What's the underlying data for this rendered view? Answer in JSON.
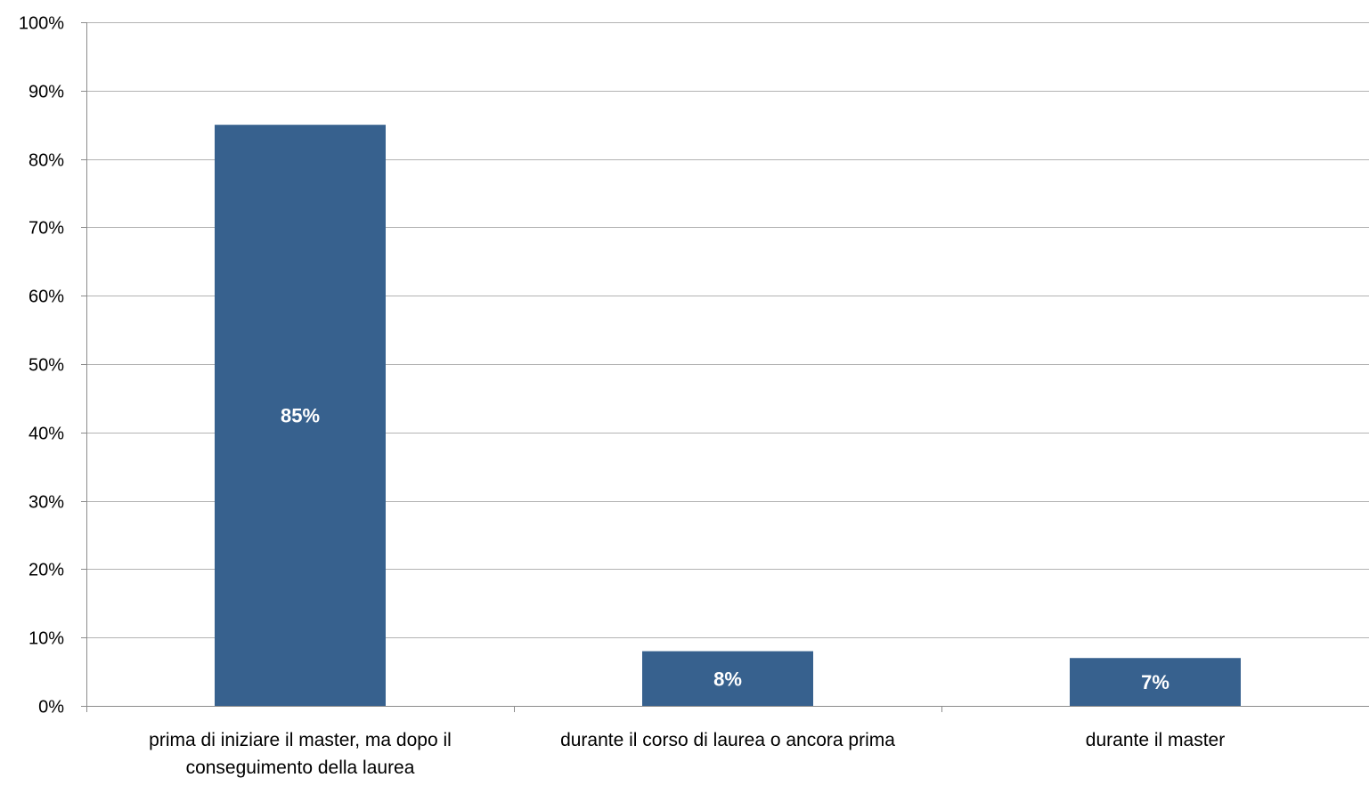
{
  "chart_data": {
    "type": "bar",
    "categories": [
      [
        "prima di iniziare il master, ma dopo il",
        "conseguimento della laurea"
      ],
      [
        "durante il corso di laurea o ancora prima"
      ],
      [
        "durante il master"
      ]
    ],
    "values": [
      85,
      8,
      7
    ],
    "data_labels": [
      "85%",
      "8%",
      "7%"
    ],
    "title": "",
    "xlabel": "",
    "ylabel": "",
    "ylim": [
      0,
      100
    ],
    "yticks": [
      0,
      10,
      20,
      30,
      40,
      50,
      60,
      70,
      80,
      90,
      100
    ],
    "ytick_labels": [
      "0%",
      "10%",
      "20%",
      "30%",
      "40%",
      "50%",
      "60%",
      "70%",
      "80%",
      "90%",
      "100%"
    ],
    "grid": true,
    "legend": "none",
    "colors": {
      "bar": "#37618E",
      "grid": "#B3B3B3",
      "axis": "#8C8C8C",
      "data_label": "#FFFFFF"
    }
  }
}
